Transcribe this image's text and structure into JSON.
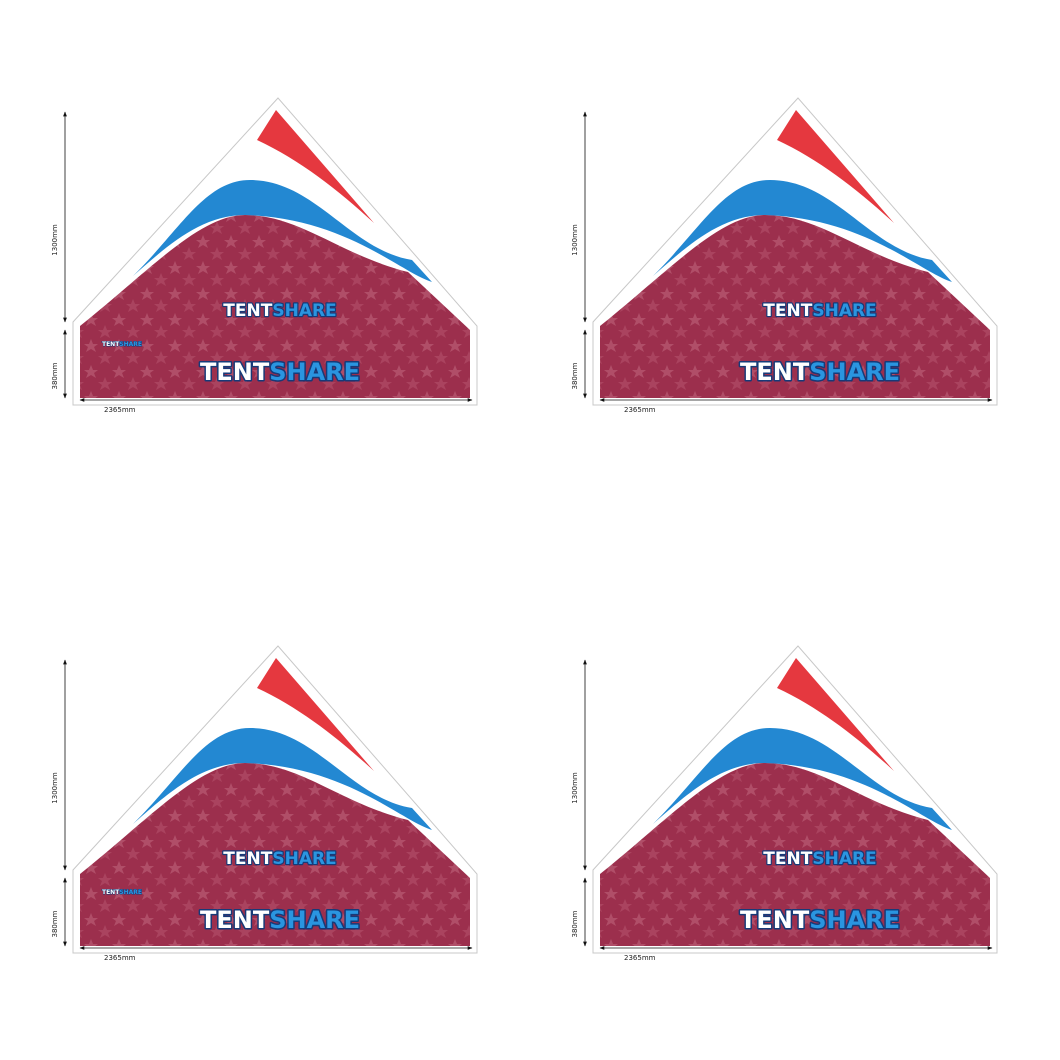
{
  "panels": [
    {
      "height_label": "1300mm",
      "base_label": "380mm",
      "width_label": "2365mm",
      "logos": [
        {
          "tent": "TENT",
          "share": "SHARE"
        },
        {
          "tent": "TENT",
          "share": "SHARE"
        },
        {
          "tent": "TENT",
          "share": "SHARE"
        }
      ]
    },
    {
      "height_label": "1300mm",
      "base_label": "380mm",
      "width_label": "2365mm",
      "logos": [
        {
          "tent": "TENT",
          "share": "SHARE"
        },
        {
          "tent": "TENT",
          "share": "SHARE"
        }
      ]
    },
    {
      "height_label": "1300mm",
      "base_label": "380mm",
      "width_label": "2365mm",
      "logos": [
        {
          "tent": "TENT",
          "share": "SHARE"
        },
        {
          "tent": "TENT",
          "share": "SHARE"
        },
        {
          "tent": "TENT",
          "share": "SHARE"
        }
      ]
    },
    {
      "height_label": "1300mm",
      "base_label": "380mm",
      "width_label": "2365mm",
      "logos": [
        {
          "tent": "TENT",
          "share": "SHARE"
        },
        {
          "tent": "TENT",
          "share": "SHARE"
        }
      ]
    }
  ]
}
